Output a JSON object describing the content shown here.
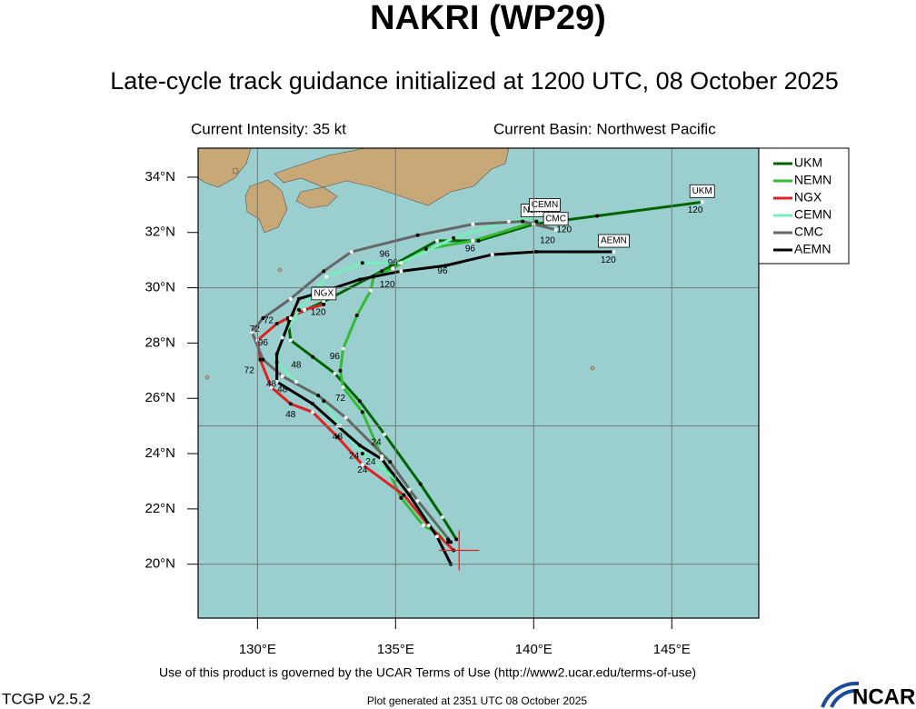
{
  "header": {
    "title": "NAKRI (WP29)",
    "subtitle": "Late-cycle track guidance initialized at 1200 UTC, 08 October 2025",
    "intensity": "Current Intensity: 35 kt",
    "basin": "Current Basin: Northwest Pacific"
  },
  "footer": {
    "terms": "Use of this product is governed by the UCAR Terms of Use (http://www2.ucar.edu/terms-of-use)",
    "version": "TCGP v2.5.2",
    "generated": "Plot generated at 2351 UTC   08 October 2025",
    "logo": "NCAR"
  },
  "chart_data": {
    "type": "line",
    "legend": "outside-right",
    "xlim": [
      127.85,
      148.15
    ],
    "ylim": [
      18.05,
      35.05
    ],
    "xticks": [
      {
        "value": 130,
        "label": "130°E"
      },
      {
        "value": 135,
        "label": "135°E"
      },
      {
        "value": 140,
        "label": "140°E"
      },
      {
        "value": 145,
        "label": "145°E"
      }
    ],
    "yticks": [
      {
        "value": 20,
        "label": "20°N"
      },
      {
        "value": 22,
        "label": "22°N"
      },
      {
        "value": 24,
        "label": "24°N"
      },
      {
        "value": 26,
        "label": "26°N"
      },
      {
        "value": 28,
        "label": "28°N"
      },
      {
        "value": 30,
        "label": "30°N"
      },
      {
        "value": 32,
        "label": "32°N"
      },
      {
        "value": 34,
        "label": "34°N"
      }
    ],
    "ygrid": [
      20,
      25,
      30
    ],
    "current_position": {
      "lon": 137.3,
      "lat": 20.5
    },
    "series": [
      {
        "name": "UKM",
        "color": "#006400",
        "x": [
          137.2,
          136.7,
          135.9,
          134.6,
          133.7,
          132.8,
          132.0,
          131.2,
          131.1,
          132.4,
          134.5,
          136.5,
          138.0,
          140.0,
          142.3,
          146.1
        ],
        "values": [
          20.9,
          21.7,
          22.9,
          24.7,
          25.9,
          26.9,
          27.5,
          28.1,
          28.9,
          29.5,
          30.6,
          31.7,
          31.7,
          32.3,
          32.6,
          33.1
        ]
      },
      {
        "name": "NEMN",
        "color": "#33bb33",
        "x": [
          136.9,
          136.0,
          135.2,
          134.5,
          133.8,
          133.1,
          133.0,
          133.1,
          133.6,
          134.1,
          134.2,
          134.9,
          136.1,
          137.8,
          140.1
        ],
        "values": [
          20.9,
          21.4,
          22.4,
          23.9,
          25.5,
          26.4,
          27.0,
          27.8,
          29.0,
          29.9,
          30.4,
          30.7,
          31.4,
          31.7,
          32.4
        ]
      },
      {
        "name": "NGX",
        "color": "#dd2222",
        "x": [
          137.1,
          136.2,
          135.3,
          133.8,
          132.9,
          132.0,
          131.2,
          130.5,
          130.1,
          130.0,
          130.7,
          131.7,
          132.4
        ],
        "values": [
          20.5,
          21.4,
          22.5,
          23.6,
          24.6,
          25.5,
          25.8,
          26.4,
          27.4,
          28.1,
          28.7,
          29.2,
          29.4
        ]
      },
      {
        "name": "CEMN",
        "color": "#77eebb",
        "x": [
          136.9,
          135.5,
          133.8,
          133.0,
          132.4,
          131.4,
          130.7,
          130.9,
          131.5,
          132.5,
          133.8,
          135.2,
          137.1,
          139.1,
          140.4
        ],
        "values": [
          20.8,
          22.7,
          24.0,
          25.0,
          25.9,
          26.6,
          27.3,
          28.2,
          29.2,
          30.4,
          30.9,
          30.9,
          31.8,
          32.4,
          32.6
        ]
      },
      {
        "name": "CMC",
        "color": "#666666",
        "x": [
          137.0,
          135.8,
          134.8,
          133.2,
          132.2,
          130.9,
          130.2,
          129.8,
          130.2,
          131.2,
          132.4,
          133.4,
          135.8,
          137.8,
          139.6,
          140.8
        ],
        "values": [
          20.8,
          22.3,
          23.7,
          25.3,
          26.1,
          26.8,
          27.4,
          28.4,
          28.9,
          29.6,
          30.6,
          31.3,
          31.9,
          32.3,
          32.4,
          32.1
        ]
      },
      {
        "name": "AEMN",
        "color": "#000000",
        "x": [
          137.0,
          136.5,
          135.5,
          134.5,
          133.7,
          132.9,
          132.0,
          130.7,
          130.7,
          131.2,
          131.5,
          132.5,
          133.7,
          135.2,
          136.8,
          138.5,
          140.1,
          142.9
        ],
        "values": [
          20.0,
          21.0,
          22.5,
          23.8,
          24.3,
          25.0,
          25.8,
          26.6,
          27.6,
          28.9,
          29.6,
          29.9,
          30.3,
          30.6,
          30.8,
          31.2,
          31.3,
          31.3
        ]
      }
    ],
    "hour_labels": [
      {
        "text": "120",
        "lon": 145.85,
        "lat": 32.8
      },
      {
        "text": "120",
        "lon": 141.1,
        "lat": 32.1
      },
      {
        "text": "120",
        "lon": 140.5,
        "lat": 31.7
      },
      {
        "text": "120",
        "lon": 142.7,
        "lat": 31.0
      },
      {
        "text": "96",
        "lon": 137.7,
        "lat": 31.4
      },
      {
        "text": "96",
        "lon": 136.7,
        "lat": 30.6
      },
      {
        "text": "96",
        "lon": 134.6,
        "lat": 31.2
      },
      {
        "text": "96",
        "lon": 134.9,
        "lat": 30.9
      },
      {
        "text": "120",
        "lon": 134.7,
        "lat": 30.1
      },
      {
        "text": "120",
        "lon": 132.2,
        "lat": 29.1
      },
      {
        "text": "72",
        "lon": 130.4,
        "lat": 28.8
      },
      {
        "text": "72",
        "lon": 129.9,
        "lat": 28.5
      },
      {
        "text": "96",
        "lon": 130.2,
        "lat": 28.0
      },
      {
        "text": "72",
        "lon": 129.7,
        "lat": 27.0
      },
      {
        "text": "96",
        "lon": 132.8,
        "lat": 27.5
      },
      {
        "text": "48",
        "lon": 131.4,
        "lat": 27.2
      },
      {
        "text": "48",
        "lon": 130.5,
        "lat": 26.5
      },
      {
        "text": "48",
        "lon": 130.9,
        "lat": 26.3
      },
      {
        "text": "72",
        "lon": 133.0,
        "lat": 26.0
      },
      {
        "text": "48",
        "lon": 131.2,
        "lat": 25.4
      },
      {
        "text": "48",
        "lon": 132.9,
        "lat": 24.6
      },
      {
        "text": "24",
        "lon": 134.3,
        "lat": 24.4
      },
      {
        "text": "24",
        "lon": 133.5,
        "lat": 23.9
      },
      {
        "text": "24",
        "lon": 134.1,
        "lat": 23.7
      },
      {
        "text": "24",
        "lon": 133.8,
        "lat": 23.4
      }
    ]
  }
}
